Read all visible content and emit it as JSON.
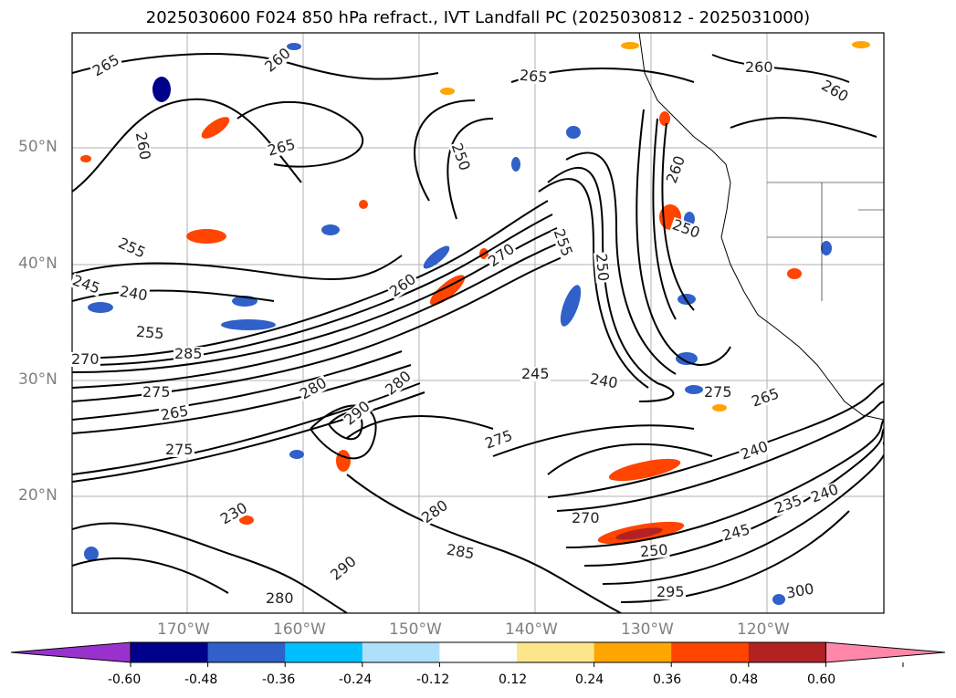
{
  "title": "2025030600 F024 850 hPa refract., IVT Landfall PC (2025030812 - 2025031000)",
  "lat_labels": [
    "50°N",
    "40°N",
    "30°N",
    "20°N"
  ],
  "lon_labels": [
    "170°W",
    "160°W",
    "150°W",
    "140°W",
    "130°W",
    "120°W"
  ],
  "contour_labels": [
    "265",
    "260",
    "265",
    "260",
    "260",
    "260",
    "265",
    "250",
    "260",
    "255",
    "245",
    "240",
    "255",
    "285",
    "270",
    "275",
    "265",
    "275",
    "280",
    "260",
    "270",
    "255",
    "250",
    "245",
    "240",
    "275",
    "265",
    "275",
    "240",
    "280",
    "290",
    "285",
    "295",
    "300",
    "280",
    "250",
    "245",
    "235",
    "240",
    "270",
    "250",
    "230",
    "290",
    "280"
  ],
  "colorbar": {
    "ticks": [
      "-0.60",
      "-0.48",
      "-0.36",
      "-0.24",
      "-0.12",
      "0.12",
      "0.24",
      "0.36",
      "0.48",
      "0.60"
    ],
    "colors": [
      "#9932cc",
      "#00008b",
      "#3060c8",
      "#00bfff",
      "#aee0fa",
      "#ffffff",
      "#fde68a",
      "#ffa500",
      "#ff4500",
      "#b22222",
      "#ff88aa"
    ]
  }
}
